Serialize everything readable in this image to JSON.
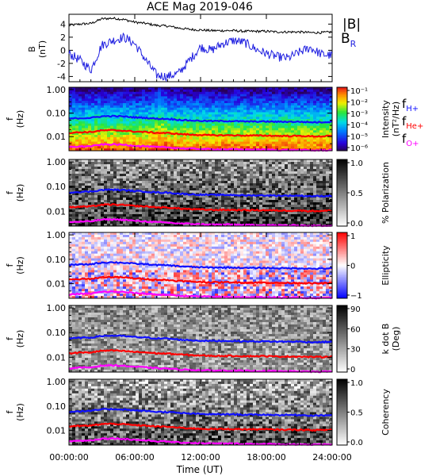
{
  "title": "ACE Mag 2019-046",
  "xlabel": "Time (UT)",
  "x_tick_labels": [
    "00:00:00",
    "06:00:00",
    "12:00:00",
    "18:00:00",
    "24:00:00"
  ],
  "colors": {
    "b_total": "#000000",
    "b_r": "#1f1fe0",
    "f_h": "#1010ff",
    "f_he": "#ff0000",
    "f_o": "#ff00ff"
  },
  "chart_data": [
    {
      "type": "line",
      "panel": "field",
      "ylabel": "B",
      "yunit": "(nT)",
      "ylim": [
        -4.8,
        5.5
      ],
      "y_tick_labels": [
        "4",
        "2",
        "0",
        "-2",
        "-4"
      ],
      "y_ticks": [
        4,
        2,
        0,
        -2,
        -4
      ],
      "x_hours": [
        0,
        1,
        2,
        3,
        4,
        5,
        6,
        7,
        8,
        9,
        10,
        11,
        12,
        13,
        14,
        15,
        16,
        17,
        18,
        19,
        20,
        21,
        22,
        23,
        24
      ],
      "series": [
        {
          "name": "|B|",
          "color": "#000000",
          "values": [
            3.8,
            4.0,
            4.1,
            4.8,
            4.9,
            4.7,
            4.3,
            4.1,
            3.8,
            3.7,
            3.4,
            3.2,
            3.1,
            3.0,
            3.0,
            3.0,
            2.9,
            2.9,
            2.9,
            2.8,
            2.8,
            2.8,
            2.7,
            2.7,
            2.8
          ]
        },
        {
          "name": "B_R",
          "label_main": "B",
          "label_sub": "R",
          "color": "#1f1fe0",
          "values": [
            -0.5,
            -1.5,
            -3.0,
            0.8,
            1.5,
            2.0,
            1.0,
            -1.5,
            -3.8,
            -4.0,
            -3.5,
            -1.5,
            0.5,
            0.0,
            1.0,
            1.5,
            1.2,
            0.2,
            -0.5,
            -1.0,
            -1.2,
            -0.3,
            0.4,
            -0.6,
            -0.8
          ]
        }
      ]
    },
    {
      "type": "heatmap",
      "panel": "intensity",
      "ylabel": "f",
      "yunit": "(Hz)",
      "scale": "log",
      "y_tick_labels": [
        "1.00",
        "0.10",
        "0.01"
      ],
      "colorbar_label": "Intensity",
      "colorbar_unit": "(nT²/Hz)",
      "colorbar_ticks": [
        "10⁻¹",
        "10⁻²",
        "10⁻³",
        "10⁻⁴",
        "10⁻⁵",
        "10⁻⁶"
      ],
      "colorbar_range": [
        -6,
        -1
      ]
    },
    {
      "type": "heatmap",
      "panel": "polarization",
      "ylabel": "f",
      "yunit": "(Hz)",
      "scale": "log",
      "y_tick_labels": [
        "1.00",
        "0.10",
        "0.01"
      ],
      "colorbar_label": "% Polarization",
      "colorbar_ticks": [
        "1.0",
        "0.5",
        "0.0"
      ],
      "colorbar_range": [
        0.0,
        1.0
      ]
    },
    {
      "type": "heatmap",
      "panel": "ellipticity",
      "ylabel": "f",
      "yunit": "(Hz)",
      "scale": "log",
      "y_tick_labels": [
        "1.00",
        "0.10",
        "0.01"
      ],
      "colorbar_label": "Ellipticity",
      "colorbar_ticks": [
        "1",
        "0",
        "−1"
      ],
      "colorbar_range": [
        -1,
        1
      ]
    },
    {
      "type": "heatmap",
      "panel": "kdotb",
      "ylabel": "f",
      "yunit": "(Hz)",
      "scale": "log",
      "y_tick_labels": [
        "1.00",
        "0.10",
        "0.01"
      ],
      "colorbar_label": "k dot B",
      "colorbar_unit": "(Deg)",
      "colorbar_ticks": [
        "90",
        "60",
        "30",
        "0"
      ],
      "colorbar_range": [
        0,
        90
      ]
    },
    {
      "type": "heatmap",
      "panel": "coherency",
      "ylabel": "f",
      "yunit": "(Hz)",
      "scale": "log",
      "y_tick_labels": [
        "1.00",
        "0.10",
        "0.01"
      ],
      "colorbar_label": "Coherency",
      "colorbar_ticks": [
        "1.0",
        "0.5",
        "0.0"
      ],
      "colorbar_range": [
        0.0,
        1.0
      ]
    },
    {
      "type": "line",
      "panel": "gyrofrequencies",
      "x_hours": [
        0,
        1,
        2,
        3,
        4,
        5,
        6,
        7,
        8,
        9,
        10,
        11,
        12,
        13,
        14,
        15,
        16,
        17,
        18,
        19,
        20,
        21,
        22,
        23,
        24
      ],
      "series": [
        {
          "name": "f_H+",
          "label_main": "f",
          "label_sub": "H+",
          "color": "#1010ff",
          "values": [
            0.058,
            0.061,
            0.063,
            0.073,
            0.075,
            0.072,
            0.066,
            0.063,
            0.058,
            0.057,
            0.052,
            0.049,
            0.047,
            0.046,
            0.046,
            0.046,
            0.044,
            0.044,
            0.044,
            0.043,
            0.043,
            0.043,
            0.041,
            0.041,
            0.043
          ]
        },
        {
          "name": "f_He+",
          "label_main": "f",
          "label_sub": "He+",
          "color": "#ff0000",
          "values": [
            0.0145,
            0.0153,
            0.0157,
            0.0183,
            0.0187,
            0.0179,
            0.0164,
            0.0157,
            0.0145,
            0.0141,
            0.013,
            0.0122,
            0.0118,
            0.0114,
            0.0114,
            0.0114,
            0.0111,
            0.0111,
            0.0111,
            0.0107,
            0.0107,
            0.0107,
            0.0103,
            0.0103,
            0.0107
          ]
        },
        {
          "name": "f_O+",
          "label_main": "f",
          "label_sub": "O+",
          "color": "#ff00ff",
          "values": [
            0.0036,
            0.0038,
            0.0039,
            0.0046,
            0.0047,
            0.0045,
            0.0041,
            0.0039,
            0.0036,
            0.0035,
            0.0032,
            0.0031,
            0.003,
            0.0029,
            0.0029,
            0.0029,
            0.0028,
            0.0028,
            0.0028,
            0.0027,
            0.0027,
            0.0027,
            0.0026,
            0.0026,
            0.0027
          ]
        }
      ]
    }
  ]
}
